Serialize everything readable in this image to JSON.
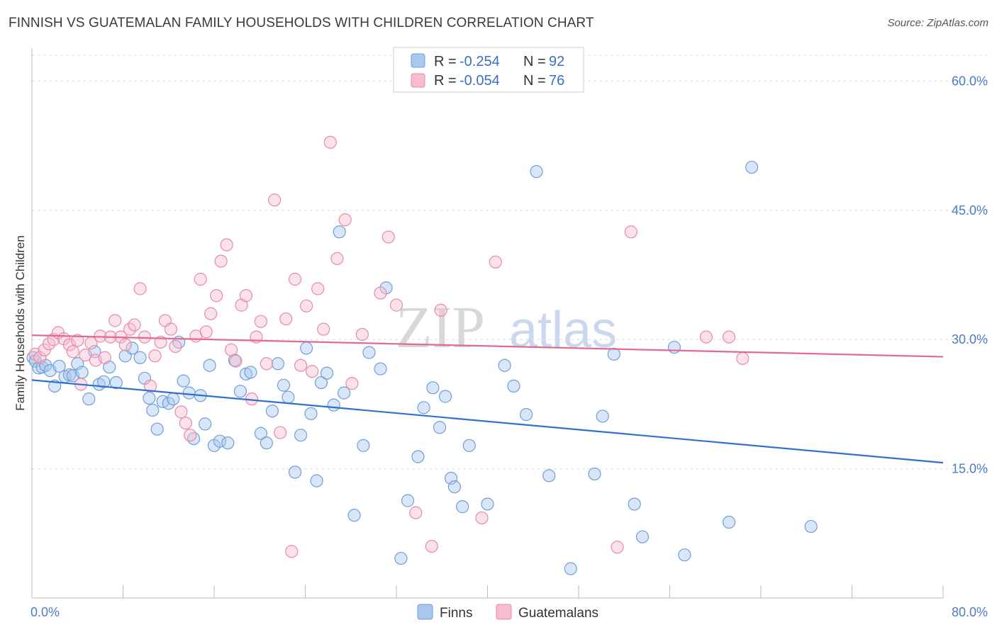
{
  "header": {
    "title": "FINNISH VS GUATEMALAN FAMILY HOUSEHOLDS WITH CHILDREN CORRELATION CHART",
    "source": "Source: ZipAtlas.com"
  },
  "watermark": {
    "zip": "ZIP",
    "atlas": "atlas"
  },
  "legend": {
    "finns": {
      "r_label": "R =",
      "r_value": "-0.254",
      "n_label": "N =",
      "n_value": "92"
    },
    "guatemalans": {
      "r_label": "R =",
      "r_value": "-0.054",
      "n_label": "N =",
      "n_value": "76"
    }
  },
  "bottom_legend": {
    "finns": "Finns",
    "guatemalans": "Guatemalans"
  },
  "colors": {
    "finns_fill": "#aac8ee",
    "finns_stroke": "#6f9fd8",
    "finns_line": "#2f6fcf",
    "guat_fill": "#f7bcd0",
    "guat_stroke": "#e88aa8",
    "guat_line": "#e06a95",
    "axis_label": "#4a7cc7",
    "grid": "#dddddd"
  },
  "chart_data": {
    "type": "scatter",
    "title": "FINNISH VS GUATEMALAN FAMILY HOUSEHOLDS WITH CHILDREN CORRELATION CHART",
    "xlabel": "",
    "ylabel": "Family Households with Children",
    "xlim": [
      0,
      80
    ],
    "ylim": [
      0,
      63
    ],
    "x_tick_labels": [
      "0.0%",
      "80.0%"
    ],
    "y_ticks": [
      15,
      30,
      45,
      60
    ],
    "y_tick_labels": [
      "15.0%",
      "30.0%",
      "45.0%",
      "60.0%"
    ],
    "series": [
      {
        "name": "Finns",
        "r": -0.254,
        "n": 92,
        "trend": {
          "x": [
            0,
            80
          ],
          "y": [
            25.3,
            15.7
          ]
        },
        "points": [
          [
            0.1,
            27.9
          ],
          [
            0.3,
            27.5
          ],
          [
            0.6,
            26.7
          ],
          [
            0.9,
            26.8
          ],
          [
            1.2,
            27.0
          ],
          [
            1.6,
            26.4
          ],
          [
            2.0,
            24.6
          ],
          [
            2.4,
            26.9
          ],
          [
            2.9,
            25.7
          ],
          [
            3.3,
            25.9
          ],
          [
            3.6,
            25.8
          ],
          [
            4.0,
            27.2
          ],
          [
            4.4,
            26.2
          ],
          [
            5.0,
            23.1
          ],
          [
            5.5,
            28.6
          ],
          [
            5.9,
            24.8
          ],
          [
            6.3,
            25.1
          ],
          [
            6.8,
            26.8
          ],
          [
            7.4,
            25.0
          ],
          [
            8.2,
            28.1
          ],
          [
            8.8,
            29.0
          ],
          [
            9.5,
            27.9
          ],
          [
            9.9,
            25.5
          ],
          [
            10.3,
            23.2
          ],
          [
            10.6,
            21.8
          ],
          [
            11.0,
            19.6
          ],
          [
            11.5,
            22.8
          ],
          [
            12.0,
            22.6
          ],
          [
            12.4,
            23.1
          ],
          [
            12.9,
            29.7
          ],
          [
            13.3,
            25.2
          ],
          [
            13.8,
            23.8
          ],
          [
            14.2,
            18.5
          ],
          [
            14.8,
            23.5
          ],
          [
            15.2,
            20.2
          ],
          [
            15.6,
            27.0
          ],
          [
            16.0,
            17.7
          ],
          [
            16.5,
            18.2
          ],
          [
            17.2,
            18.0
          ],
          [
            17.8,
            27.6
          ],
          [
            18.3,
            24.0
          ],
          [
            18.8,
            26.0
          ],
          [
            19.2,
            26.2
          ],
          [
            20.1,
            19.1
          ],
          [
            20.6,
            18.0
          ],
          [
            21.1,
            21.7
          ],
          [
            21.6,
            27.2
          ],
          [
            22.1,
            24.7
          ],
          [
            22.5,
            23.3
          ],
          [
            23.1,
            14.6
          ],
          [
            23.6,
            18.9
          ],
          [
            24.1,
            29.0
          ],
          [
            24.5,
            21.4
          ],
          [
            25.0,
            13.6
          ],
          [
            25.4,
            25.0
          ],
          [
            25.9,
            26.1
          ],
          [
            26.5,
            22.4
          ],
          [
            27.4,
            23.8
          ],
          [
            28.3,
            9.6
          ],
          [
            29.1,
            17.7
          ],
          [
            29.6,
            28.5
          ],
          [
            30.6,
            26.6
          ],
          [
            31.1,
            36.0
          ],
          [
            32.4,
            4.6
          ],
          [
            33.0,
            11.3
          ],
          [
            33.9,
            16.4
          ],
          [
            34.4,
            22.1
          ],
          [
            35.2,
            24.4
          ],
          [
            35.8,
            19.8
          ],
          [
            36.3,
            23.4
          ],
          [
            36.8,
            13.9
          ],
          [
            37.1,
            12.9
          ],
          [
            37.8,
            10.6
          ],
          [
            38.4,
            17.7
          ],
          [
            40.0,
            10.9
          ],
          [
            41.5,
            27.0
          ],
          [
            42.3,
            24.6
          ],
          [
            43.4,
            21.3
          ],
          [
            44.3,
            49.5
          ],
          [
            45.4,
            14.2
          ],
          [
            47.3,
            3.4
          ],
          [
            49.4,
            14.4
          ],
          [
            50.1,
            21.1
          ],
          [
            51.1,
            28.3
          ],
          [
            52.9,
            10.9
          ],
          [
            53.6,
            7.1
          ],
          [
            56.4,
            29.1
          ],
          [
            57.3,
            5.0
          ],
          [
            61.2,
            8.8
          ],
          [
            63.2,
            50.0
          ],
          [
            68.4,
            8.3
          ],
          [
            27.0,
            42.5
          ]
        ]
      },
      {
        "name": "Guatemalans",
        "r": -0.054,
        "n": 76,
        "trend": {
          "x": [
            0,
            80
          ],
          "y": [
            30.5,
            28.0
          ]
        },
        "points": [
          [
            0.3,
            28.3
          ],
          [
            0.7,
            27.9
          ],
          [
            1.1,
            28.8
          ],
          [
            1.5,
            29.5
          ],
          [
            1.9,
            30.0
          ],
          [
            2.3,
            30.8
          ],
          [
            2.8,
            30.1
          ],
          [
            3.3,
            29.4
          ],
          [
            3.6,
            28.6
          ],
          [
            4.0,
            29.9
          ],
          [
            4.3,
            24.8
          ],
          [
            4.7,
            28.2
          ],
          [
            5.2,
            29.6
          ],
          [
            5.6,
            27.6
          ],
          [
            6.0,
            30.4
          ],
          [
            6.4,
            27.9
          ],
          [
            6.9,
            30.3
          ],
          [
            7.3,
            32.2
          ],
          [
            7.8,
            30.3
          ],
          [
            8.2,
            29.4
          ],
          [
            8.6,
            31.2
          ],
          [
            9.0,
            31.7
          ],
          [
            9.5,
            35.9
          ],
          [
            9.9,
            30.3
          ],
          [
            10.4,
            24.6
          ],
          [
            10.8,
            28.1
          ],
          [
            11.3,
            29.7
          ],
          [
            11.7,
            32.2
          ],
          [
            12.2,
            31.2
          ],
          [
            12.6,
            29.2
          ],
          [
            13.1,
            21.6
          ],
          [
            13.5,
            20.3
          ],
          [
            13.9,
            18.9
          ],
          [
            14.4,
            30.4
          ],
          [
            14.8,
            37.0
          ],
          [
            15.3,
            30.9
          ],
          [
            15.7,
            33.0
          ],
          [
            16.2,
            35.1
          ],
          [
            16.6,
            39.1
          ],
          [
            17.1,
            41.0
          ],
          [
            17.5,
            28.8
          ],
          [
            17.9,
            27.5
          ],
          [
            18.4,
            34.0
          ],
          [
            18.8,
            35.1
          ],
          [
            19.3,
            23.1
          ],
          [
            19.7,
            30.3
          ],
          [
            20.1,
            32.1
          ],
          [
            20.6,
            27.2
          ],
          [
            21.3,
            46.2
          ],
          [
            21.8,
            19.2
          ],
          [
            22.3,
            32.4
          ],
          [
            22.8,
            5.4
          ],
          [
            23.1,
            37.0
          ],
          [
            23.6,
            27.0
          ],
          [
            24.1,
            33.9
          ],
          [
            24.6,
            26.3
          ],
          [
            25.1,
            35.9
          ],
          [
            25.6,
            31.2
          ],
          [
            26.2,
            52.9
          ],
          [
            26.8,
            39.4
          ],
          [
            27.5,
            43.9
          ],
          [
            28.1,
            24.9
          ],
          [
            29.0,
            30.6
          ],
          [
            30.6,
            35.4
          ],
          [
            31.3,
            41.9
          ],
          [
            32.0,
            34.0
          ],
          [
            33.7,
            9.9
          ],
          [
            35.1,
            6.0
          ],
          [
            35.9,
            33.4
          ],
          [
            39.5,
            9.3
          ],
          [
            40.7,
            39.0
          ],
          [
            51.4,
            5.9
          ],
          [
            52.6,
            42.5
          ],
          [
            61.2,
            30.3
          ],
          [
            62.4,
            27.8
          ],
          [
            59.2,
            30.3
          ]
        ]
      }
    ]
  }
}
